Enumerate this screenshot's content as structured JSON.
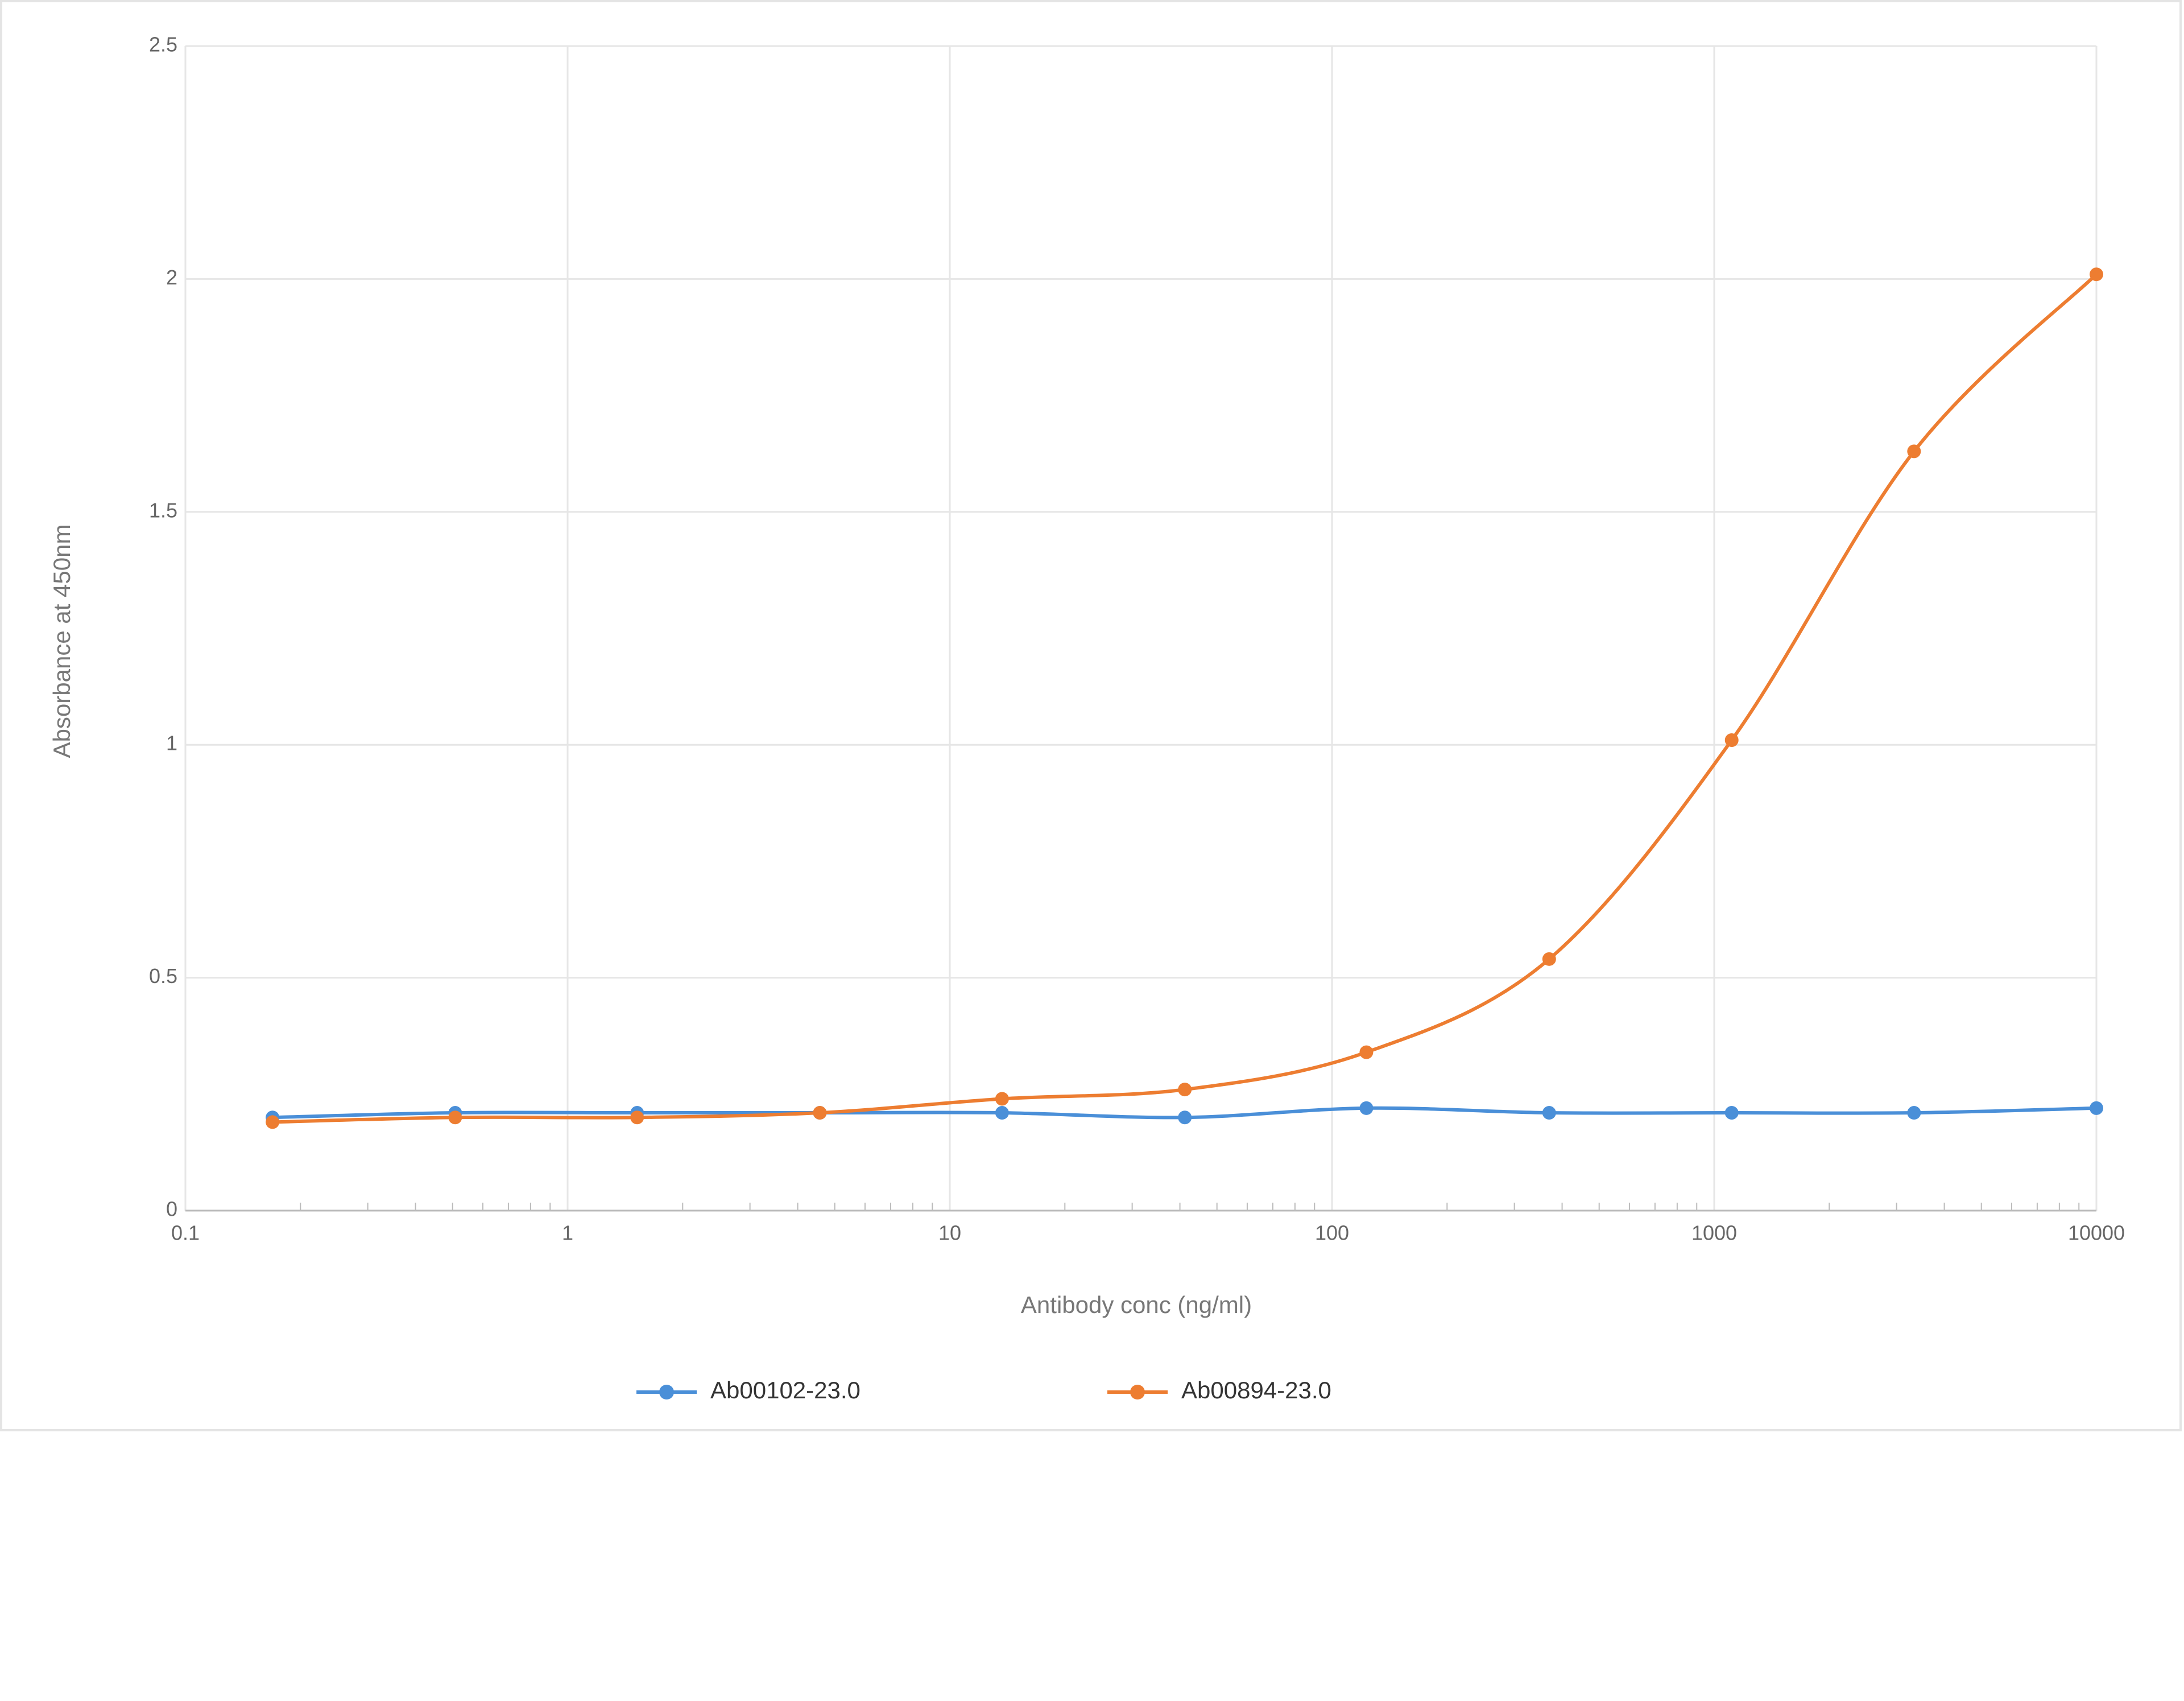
{
  "chart_data": {
    "type": "line",
    "x_label": "Antibody conc (ng/ml)",
    "y_label": "Absorbance at 450nm",
    "x": [
      0.169,
      0.508,
      1.52,
      4.57,
      13.7,
      41.2,
      123,
      370,
      1111,
      3333,
      10000
    ],
    "series": [
      {
        "name": "Ab00102-23.0",
        "color": "#4a8fd8",
        "values": [
          0.2,
          0.21,
          0.21,
          0.21,
          0.21,
          0.2,
          0.22,
          0.21,
          0.21,
          0.21,
          0.22
        ]
      },
      {
        "name": "Ab00894-23.0",
        "color": "#ed7d31",
        "values": [
          0.19,
          0.2,
          0.2,
          0.21,
          0.24,
          0.26,
          0.34,
          0.54,
          1.01,
          1.63,
          2.01
        ]
      }
    ],
    "xlim": [
      0.1,
      10000
    ],
    "xticks": [
      0.1,
      1,
      10,
      100,
      1000,
      10000
    ],
    "xscale": "log",
    "ylim": [
      0,
      2.5
    ],
    "yticks": [
      0,
      0.5,
      1,
      1.5,
      2,
      2.5
    ],
    "grid": true,
    "legend": "bottom"
  }
}
